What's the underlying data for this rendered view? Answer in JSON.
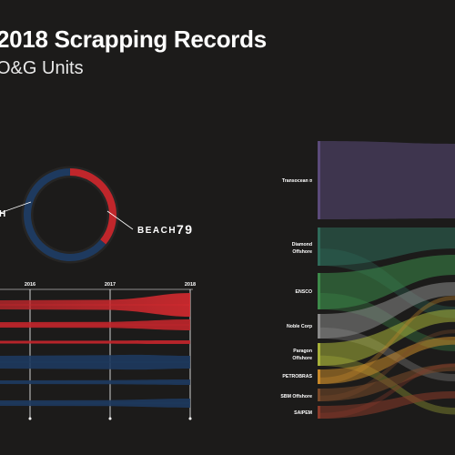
{
  "header": {
    "title": "2018 Scrapping Records",
    "subtitle": "O&G Units"
  },
  "colors": {
    "background": "#1c1b1a",
    "red": "#c0262b",
    "blue": "#1e3a5f",
    "grid": "#ffffff"
  },
  "chart_data": [
    {
      "type": "pie",
      "variant": "donut",
      "labels": [
        "BEACH",
        "NON-BEACH"
      ],
      "visible_labels": [
        "BEACH",
        "H"
      ],
      "values": [
        79,
        null
      ],
      "value_labels": [
        "79",
        ""
      ],
      "colors": [
        "#c0262b",
        "#1e3a5f"
      ]
    },
    {
      "type": "area",
      "x_ticks": [
        "2016",
        "2017",
        "2018"
      ],
      "series_colors": [
        "#c0262b",
        "#c0262b",
        "#c0262b",
        "#c0262b",
        "#1e3a5f",
        "#1e3a5f",
        "#1e3a5f",
        "#1e3a5f"
      ],
      "grid": true
    },
    {
      "type": "sankey",
      "sources": [
        "Transocean",
        "Diamond Offshore",
        "ENSCO",
        "Noble Corp",
        "Paragon Offshore",
        "PETROBRAS",
        "SBM Offshore",
        "SAIPEM"
      ],
      "colors": [
        "#5b4b7a",
        "#2f6b5a",
        "#3d8a4a",
        "#8a8a8a",
        "#a8b23a",
        "#c98a2a",
        "#7a4a2a",
        "#8a3a2a"
      ]
    }
  ]
}
